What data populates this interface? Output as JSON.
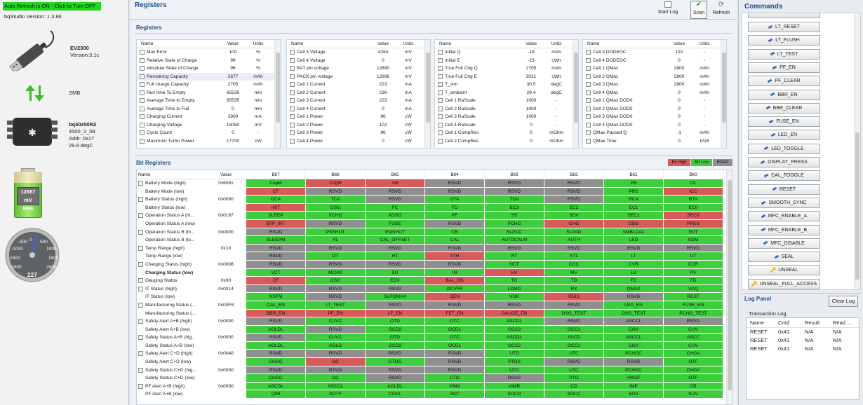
{
  "left": {
    "autorefresh": "Auto Refresh is ON - Click to Turn OFF",
    "version": "bqStudio Version:  1.3.86",
    "ev_name": "EV2300",
    "ev_version": "Version:3.1c",
    "link": "SMB",
    "chip": "bq40z50R2",
    "chip_fw": "4500_2_08",
    "chip_addr": "Addr: 0x17",
    "chip_temp": "29.9 degC",
    "battery_mv": "12887 mV",
    "battery_pct": "99%",
    "gauge_value": "227",
    "gauge_ticks": [
      "-2000",
      "-1500",
      "-1000",
      "-500",
      "0",
      "500",
      "1000",
      "1500",
      "2000"
    ]
  },
  "mid": {
    "title": "Registers",
    "start_log": "Start Log",
    "scan": "Scan",
    "refresh": "Refresh",
    "registers_label": "Registers",
    "bit_registers_label": "Bit Registers",
    "legend": [
      "Bit High",
      "Bit Low",
      "RSVD"
    ],
    "headers": [
      "Name",
      "Value",
      "Units"
    ],
    "reg_cols": [
      [
        [
          "Max Error",
          "100",
          "%"
        ],
        [
          "Relative State of Charge",
          "99",
          "%"
        ],
        [
          "Absolute State of Charge",
          "96",
          "%"
        ],
        [
          "Remaining Capacity",
          "2677",
          "mAh"
        ],
        [
          "Full charge Capacity",
          "2705",
          "mAh"
        ],
        [
          "Run time To Empty",
          "65535",
          "min"
        ],
        [
          "Average Time to Empty",
          "65535",
          "min"
        ],
        [
          "Average Time to Full",
          "0",
          "min"
        ],
        [
          "Charging Current",
          "2800",
          "mA"
        ],
        [
          "Charging Voltage",
          "13050",
          "mV"
        ],
        [
          "Cycle Count",
          "0",
          "-"
        ],
        [
          "Maximum Turbo Power",
          "17700",
          "cW"
        ]
      ],
      [
        [
          "Cell 3 Voltage",
          "4284",
          "mV"
        ],
        [
          "Cell 4 Voltage",
          "0",
          "mV"
        ],
        [
          "BAT pin voltage",
          "12890",
          "mV"
        ],
        [
          "PACK pin voltage",
          "12896",
          "mV"
        ],
        [
          "Cell 1 Current",
          "223",
          "mA"
        ],
        [
          "Cell 2 Current",
          "236",
          "mA"
        ],
        [
          "Cell 3 Current",
          "223",
          "mA"
        ],
        [
          "Cell 4 Current",
          "0",
          "mA"
        ],
        [
          "Cell 1 Power",
          "96",
          "cW"
        ],
        [
          "Cell 2 Power",
          "102",
          "cW"
        ],
        [
          "Cell 3 Power",
          "96",
          "cW"
        ],
        [
          "Cell 4 Power",
          "0",
          "cW"
        ]
      ],
      [
        [
          "Initial Q",
          "-18",
          "mAh"
        ],
        [
          "Initial E",
          "-23",
          "cWh"
        ],
        [
          "True Full Chg Q",
          "2705",
          "mAh"
        ],
        [
          "True Full Chg E",
          "3021",
          "cWh"
        ],
        [
          "T_sim",
          "30.5",
          "degC"
        ],
        [
          "T_ambient",
          "29.4",
          "degC"
        ],
        [
          "Cell 1 RaScale",
          "1000",
          "-"
        ],
        [
          "Cell 2 RaScale",
          "1000",
          "-"
        ],
        [
          "Cell 3 RaScale",
          "1000",
          "-"
        ],
        [
          "Cell 4 RaScale",
          "0",
          "-"
        ],
        [
          "Cell 1 CompRes",
          "0",
          "mOhm"
        ],
        [
          "Cell 2 CompRes",
          "0",
          "mOhm"
        ]
      ],
      [
        [
          "Cell 3 DODEOC",
          "192",
          "-"
        ],
        [
          "Cell 4 DODEOC",
          "0",
          "-"
        ],
        [
          "Cell 1 QMax",
          "2800",
          "mAh"
        ],
        [
          "Cell 2 QMax",
          "2800",
          "mAh"
        ],
        [
          "Cell 3 QMax",
          "2800",
          "mAh"
        ],
        [
          "Cell 4 QMax",
          "0",
          "mAh"
        ],
        [
          "Cell 1 QMax DOD0",
          "0",
          "-"
        ],
        [
          "Cell 2 QMax DOD0",
          "0",
          "-"
        ],
        [
          "Cell 3 QMax DOD0",
          "0",
          "-"
        ],
        [
          "Cell 4 QMax DOD0",
          "0",
          "-"
        ],
        [
          "QMax Passed Q",
          "-1",
          "mAh"
        ],
        [
          "QMax Time",
          "0",
          "h/16"
        ]
      ]
    ],
    "bit_headers": [
      "Name",
      "Value",
      "Bit7",
      "Bit6",
      "Bit5",
      "Bit4",
      "Bit3",
      "Bit2",
      "Bit1",
      "Bit0"
    ],
    "bit_rows": [
      [
        "Battery Mode (high)",
        "0x6081",
        [
          "CapM",
          "g"
        ],
        [
          "ChgM",
          "r"
        ],
        [
          "AM",
          "r"
        ],
        [
          "RSVD",
          "x"
        ],
        [
          "RSVD",
          "x"
        ],
        [
          "RSVD",
          "x"
        ],
        [
          "PB",
          "g"
        ],
        [
          "CC",
          "g"
        ]
      ],
      [
        "Battery Mode (low)",
        "",
        [
          "CF",
          "r"
        ],
        [
          "RSVD",
          "x"
        ],
        [
          "RSVD",
          "x"
        ],
        [
          "RSVD",
          "x"
        ],
        [
          "RSVD",
          "x"
        ],
        [
          "RSVD",
          "x"
        ],
        [
          "PBS",
          "g"
        ],
        [
          "ICC",
          "r"
        ]
      ],
      [
        "Battery Status (high)",
        "0x0080",
        [
          "OCA",
          "g"
        ],
        [
          "TCA",
          "g"
        ],
        [
          "RSVD",
          "x"
        ],
        [
          "OTA",
          "g"
        ],
        [
          "TDA",
          "g"
        ],
        [
          "RSVD",
          "x"
        ],
        [
          "RCA",
          "g"
        ],
        [
          "RTA",
          "g"
        ]
      ],
      [
        "Battery Status (low)",
        "",
        [
          "INIT",
          "r"
        ],
        [
          "DSG",
          "g"
        ],
        [
          "FC",
          "g"
        ],
        [
          "FD",
          "g"
        ],
        [
          "EC3",
          "g"
        ],
        [
          "EC2",
          "g"
        ],
        [
          "EC1",
          "g"
        ],
        [
          "EC0",
          "g"
        ]
      ],
      [
        "Operation Status A (hi...",
        "0x0187",
        [
          "SLEEP",
          "g"
        ],
        [
          "XCHG",
          "g"
        ],
        [
          "XDSG",
          "g"
        ],
        [
          "PF",
          "g"
        ],
        [
          "SS",
          "g"
        ],
        [
          "SDV",
          "g"
        ],
        [
          "SEC1",
          "g"
        ],
        [
          "SEC0",
          "r"
        ]
      ],
      [
        "Operation Status A (low)",
        "",
        [
          "BTP_INT",
          "r"
        ],
        [
          "RSVD",
          "x"
        ],
        [
          "FUSE",
          "g"
        ],
        [
          "RSVD",
          "x"
        ],
        [
          "PCHG",
          "g"
        ],
        [
          "CHG",
          "r"
        ],
        [
          "DSG",
          "r"
        ],
        [
          "PRES",
          "r"
        ]
      ],
      [
        "Operation Status B (hi...",
        "0x0000",
        [
          "RSVD",
          "x"
        ],
        [
          "PSSHUT",
          "g"
        ],
        [
          "EMSHUT",
          "g"
        ],
        [
          "CB",
          "g"
        ],
        [
          "SLPCC",
          "g"
        ],
        [
          "SLPAD",
          "g"
        ],
        [
          "SMBLCAL",
          "g"
        ],
        [
          "INIT",
          "g"
        ]
      ],
      [
        "Operation Status B (lo...",
        "",
        [
          "SLEEPM",
          "g"
        ],
        [
          "XL",
          "g"
        ],
        [
          "CAL_OFFSET",
          "g"
        ],
        [
          "CAL",
          "g"
        ],
        [
          "AUTOCALM",
          "g"
        ],
        [
          "AUTH",
          "g"
        ],
        [
          "LED",
          "g"
        ],
        [
          "SDM",
          "g"
        ]
      ],
      [
        "Temp Range (high)",
        "0x10",
        [
          "RSVD",
          "x"
        ],
        [
          "RSVD",
          "x"
        ],
        [
          "RSVD",
          "x"
        ],
        [
          "RSVD",
          "x"
        ],
        [
          "RSVD",
          "x"
        ],
        [
          "RSVD",
          "x"
        ],
        [
          "RSVD",
          "x"
        ],
        [
          "RSVD",
          "x"
        ]
      ],
      [
        "Temp Range (low)",
        "",
        [
          "RSVD",
          "x"
        ],
        [
          "OT",
          "g"
        ],
        [
          "HT",
          "g"
        ],
        [
          "STH",
          "r"
        ],
        [
          "RT",
          "g"
        ],
        [
          "STL",
          "g"
        ],
        [
          "LT",
          "g"
        ],
        [
          "UT",
          "g"
        ]
      ],
      [
        "Charging Status (high)",
        "0x0008",
        [
          "RSVD",
          "x"
        ],
        [
          "RSVD",
          "x"
        ],
        [
          "RSVD",
          "x"
        ],
        [
          "RSVD",
          "x"
        ],
        [
          "NCT",
          "g"
        ],
        [
          "CCC",
          "g"
        ],
        [
          "CVR",
          "g"
        ],
        [
          "CCR",
          "g"
        ]
      ],
      [
        "Charging Status (low)",
        "",
        [
          "VCT",
          "g"
        ],
        [
          "MCHG",
          "g"
        ],
        [
          "SU",
          "g"
        ],
        [
          "IN",
          "g"
        ],
        [
          "HV",
          "r"
        ],
        [
          "MV",
          "g"
        ],
        [
          "LV",
          "g"
        ],
        [
          "PV",
          "g"
        ]
      ],
      [
        "Gauging Status",
        "0x90",
        [
          "CF",
          "r"
        ],
        [
          "DSG",
          "g"
        ],
        [
          "EDV",
          "g"
        ],
        [
          "BAL_EN",
          "r"
        ],
        [
          "TC",
          "g"
        ],
        [
          "TD",
          "g"
        ],
        [
          "FC",
          "g"
        ],
        [
          "FD",
          "g"
        ]
      ],
      [
        "IT Status (high)",
        "0x0014",
        [
          "RSVD",
          "x"
        ],
        [
          "RSVD",
          "x"
        ],
        [
          "RSVD",
          "x"
        ],
        [
          "OCVFR",
          "g"
        ],
        [
          "LDMD",
          "g"
        ],
        [
          "RX",
          "g"
        ],
        [
          "QMAX",
          "g"
        ],
        [
          "VDQ",
          "g"
        ]
      ],
      [
        "IT Status (low)",
        "",
        [
          "NSFM",
          "g"
        ],
        [
          "RSVD",
          "x"
        ],
        [
          "SLPQMAX",
          "g"
        ],
        [
          "QEN",
          "r"
        ],
        [
          "VOK",
          "g"
        ],
        [
          "RDIS",
          "r"
        ],
        [
          "RSVD",
          "x"
        ],
        [
          "REST",
          "g"
        ]
      ],
      [
        "Manufacturing Status (...",
        "0x00F8",
        [
          "CAL_EN",
          "g"
        ],
        [
          "LT_TEST",
          "g"
        ],
        [
          "RSVD",
          "x"
        ],
        [
          "RSVD",
          "x"
        ],
        [
          "RSVD",
          "x"
        ],
        [
          "RSVD",
          "x"
        ],
        [
          "LED_EN",
          "g"
        ],
        [
          "FUSE_EN",
          "g"
        ]
      ],
      [
        "Manufacturing Status (...",
        "",
        [
          "BBR_EN",
          "r"
        ],
        [
          "PF_EN",
          "r"
        ],
        [
          "LF_EN",
          "r"
        ],
        [
          "FET_EN",
          "r"
        ],
        [
          "GAUGE_EN",
          "r"
        ],
        [
          "DSG_TEST",
          "g"
        ],
        [
          "CHG_TEST",
          "g"
        ],
        [
          "PCHG_TEST",
          "g"
        ]
      ],
      [
        "Safety Alert A+B (high)",
        "0x0000",
        [
          "RSVD",
          "x"
        ],
        [
          "CUVC",
          "g"
        ],
        [
          "OTD",
          "g"
        ],
        [
          "OTC",
          "g"
        ],
        [
          "ASCDL",
          "g"
        ],
        [
          "RSVD",
          "x"
        ],
        [
          "ASCCL",
          "x"
        ],
        [
          "RSVD",
          "x"
        ]
      ],
      [
        "Safety Alert A+B (low)",
        "",
        [
          "AOLDL",
          "g"
        ],
        [
          "RSVD",
          "x"
        ],
        [
          "OCD2",
          "g"
        ],
        [
          "OCD1",
          "g"
        ],
        [
          "OCC2",
          "g"
        ],
        [
          "OCC1",
          "g"
        ],
        [
          "COV",
          "g"
        ],
        [
          "CUV",
          "g"
        ]
      ],
      [
        "Safety Status A+B (hig...",
        "0x0000",
        [
          "RSVD",
          "x"
        ],
        [
          "CUVC",
          "g"
        ],
        [
          "OTD",
          "g"
        ],
        [
          "OTC",
          "g"
        ],
        [
          "ASCDL",
          "g"
        ],
        [
          "ASCD",
          "g"
        ],
        [
          "ASCCL",
          "g"
        ],
        [
          "ASCC",
          "g"
        ]
      ],
      [
        "Safety Status A+B (low)",
        "",
        [
          "AOLDL",
          "g"
        ],
        [
          "AOLD",
          "g"
        ],
        [
          "OCD2",
          "g"
        ],
        [
          "OCD1",
          "g"
        ],
        [
          "OCC2",
          "g"
        ],
        [
          "OCC1",
          "g"
        ],
        [
          "COV",
          "g"
        ],
        [
          "CUV",
          "g"
        ]
      ],
      [
        "Safety Alert C+D (high)",
        "0x0040",
        [
          "RSVD",
          "x"
        ],
        [
          "RSVD",
          "x"
        ],
        [
          "RSVD",
          "x"
        ],
        [
          "RSVD",
          "x"
        ],
        [
          "UTD",
          "g"
        ],
        [
          "UTC",
          "g"
        ],
        [
          "PCHGC",
          "g"
        ],
        [
          "CHGV",
          "g"
        ]
      ],
      [
        "Safety Alert C+D (low)",
        "",
        [
          "CHGC",
          "g"
        ],
        [
          "OC",
          "r"
        ],
        [
          "CTOS",
          "g"
        ],
        [
          "RSVD",
          "x"
        ],
        [
          "PTOS",
          "g"
        ],
        [
          "RSVD",
          "x"
        ],
        [
          "RSVD",
          "x"
        ],
        [
          "OTF",
          "g"
        ]
      ],
      [
        "Safety Status C+D (hig...",
        "0x0000",
        [
          "RSVD",
          "x"
        ],
        [
          "RSVD",
          "x"
        ],
        [
          "RSVD",
          "x"
        ],
        [
          "RSVD",
          "x"
        ],
        [
          "UTD",
          "g"
        ],
        [
          "UTC",
          "g"
        ],
        [
          "PCHGC",
          "g"
        ],
        [
          "CHGV",
          "g"
        ]
      ],
      [
        "Safety Status C+D (low)",
        "",
        [
          "CHGC",
          "g"
        ],
        [
          "OC",
          "g"
        ],
        [
          "RSVD",
          "x"
        ],
        [
          "CTO",
          "g"
        ],
        [
          "RSVD",
          "x"
        ],
        [
          "PTO",
          "g"
        ],
        [
          "HWDF",
          "g"
        ],
        [
          "OTF",
          "g"
        ]
      ],
      [
        "PF Alert A+B (high)",
        "0x0000",
        [
          "ASCDL",
          "g"
        ],
        [
          "ASCCL",
          "g"
        ],
        [
          "AOLDL",
          "g"
        ],
        [
          "VIMA",
          "g"
        ],
        [
          "VIMR",
          "g"
        ],
        [
          "CD",
          "g"
        ],
        [
          "IMP",
          "g"
        ],
        [
          "CB",
          "g"
        ]
      ],
      [
        "PF Alert A+B (low)",
        "",
        [
          "QIM",
          "g"
        ],
        [
          "SOTF",
          "g"
        ],
        [
          "COVL",
          "g"
        ],
        [
          "SOT",
          "g"
        ],
        [
          "SOCD",
          "g"
        ],
        [
          "SOCC",
          "g"
        ],
        [
          "SOV",
          "g"
        ],
        [
          "SUV",
          "g"
        ]
      ]
    ]
  },
  "right": {
    "title": "Commands",
    "commands": [
      "LT_RESET",
      "LT_FLUSH",
      "LT_TEST",
      "PF_EN",
      "PF_CLEAR",
      "BBR_EN",
      "BBR_CLEAR",
      "FUSE_EN",
      "LED_EN",
      "LED_TOGGLE",
      "DISPLAY_PRESS",
      "CAL_TOGGLE",
      "RESET",
      "SMOOTH_SYNC",
      "MFC_ENABLE_A",
      "MFC_ENABLE_B",
      "MFC_DISABLE",
      "SEAL",
      "UNSEAL",
      "UNSEAL_FULL_ACCESS"
    ],
    "log_title": "Log Panel",
    "clear_log": "Clear Log",
    "transaction_log": "Transaction Log",
    "log_headers": [
      "Name",
      "Cmd",
      "Result",
      "Read ..."
    ],
    "log_rows": [
      [
        "RESET",
        "0x41",
        "N/A",
        "N/A"
      ],
      [
        "RESET",
        "0x41",
        "N/A",
        "N/A"
      ],
      [
        "RESET",
        "0x41",
        "N/A",
        "N/A"
      ]
    ]
  }
}
